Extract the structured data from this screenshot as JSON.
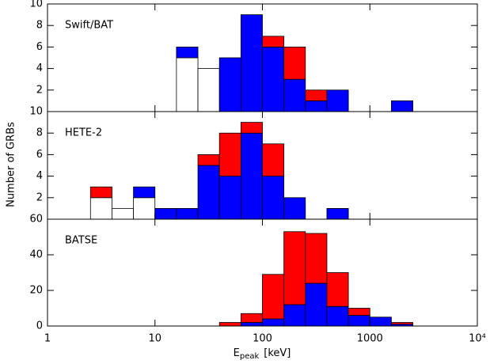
{
  "chart_data": [
    {
      "type": "histogram",
      "title": "Swift/BAT",
      "xscale": "log",
      "bins": [
        1,
        1.585,
        2.512,
        3.981,
        6.31,
        10,
        15.85,
        25.12,
        39.81,
        63.1,
        100,
        158.5,
        251.2,
        398.1,
        631,
        1000,
        1585,
        2512
      ],
      "series": [
        {
          "color": "#ffffff",
          "values": [
            0,
            0,
            0,
            0,
            0,
            0,
            5,
            4,
            0,
            0,
            0,
            0,
            0,
            0,
            0,
            0,
            0
          ]
        },
        {
          "color": "#0000ff",
          "values": [
            0,
            0,
            0,
            0,
            0,
            0,
            1,
            0,
            5,
            9,
            6,
            3,
            1,
            2,
            0,
            0,
            1
          ]
        },
        {
          "color": "#ff0000",
          "values": [
            0,
            0,
            0,
            0,
            0,
            0,
            0,
            0,
            0,
            0,
            1,
            3,
            1,
            0,
            0,
            0,
            0
          ]
        }
      ],
      "xlim": [
        1,
        10000
      ],
      "xticks": [
        1,
        10,
        100,
        1000,
        10000
      ],
      "ylim": [
        0,
        10
      ],
      "yticks": [
        2,
        4,
        6,
        8,
        10
      ]
    },
    {
      "type": "histogram",
      "title": "HETE-2",
      "xscale": "log",
      "ylabel": "Number of GRBs",
      "bins": [
        1,
        1.585,
        2.512,
        3.981,
        6.31,
        10,
        15.85,
        25.12,
        39.81,
        63.1,
        100,
        158.5,
        251.2,
        398.1,
        631,
        1000,
        1585,
        2512
      ],
      "series": [
        {
          "color": "#ffffff",
          "values": [
            0,
            0,
            2,
            1,
            2,
            0,
            0,
            0,
            0,
            0,
            0,
            0,
            0,
            0,
            0,
            0,
            0
          ]
        },
        {
          "color": "#0000ff",
          "values": [
            0,
            0,
            0,
            0,
            1,
            1,
            1,
            5,
            4,
            8,
            4,
            2,
            0,
            1,
            0,
            0,
            0
          ]
        },
        {
          "color": "#ff0000",
          "values": [
            0,
            0,
            1,
            0,
            0,
            0,
            0,
            1,
            4,
            1,
            3,
            0,
            0,
            0,
            0,
            0,
            0
          ]
        }
      ],
      "xlim": [
        1,
        10000
      ],
      "xticks": [
        1,
        10,
        100,
        1000,
        10000
      ],
      "ylim": [
        0,
        10
      ],
      "yticks": [
        2,
        4,
        6,
        8,
        10
      ]
    },
    {
      "type": "histogram",
      "title": "BATSE",
      "xscale": "log",
      "xlabel": [
        "E",
        "peak",
        "[keV]"
      ],
      "bins": [
        1,
        1.585,
        2.512,
        3.981,
        6.31,
        10,
        15.85,
        25.12,
        39.81,
        63.1,
        100,
        158.5,
        251.2,
        398.1,
        631,
        1000,
        1585,
        2512
      ],
      "series": [
        {
          "color": "#0000ff",
          "values": [
            0,
            0,
            0,
            0,
            0,
            0,
            0,
            0,
            0,
            2,
            4,
            12,
            24,
            11,
            6,
            5,
            1
          ]
        },
        {
          "color": "#ff0000",
          "values": [
            0,
            0,
            0,
            0,
            0,
            0,
            0,
            0,
            2,
            5,
            25,
            41,
            28,
            19,
            4,
            0,
            1
          ]
        }
      ],
      "xlim": [
        1,
        10000
      ],
      "xticks": [
        1,
        10,
        100,
        1000,
        {
          "value": 10000,
          "label": "10⁴"
        }
      ],
      "ylim": [
        0,
        60
      ],
      "yticks": [
        0,
        20,
        40,
        60
      ]
    }
  ]
}
